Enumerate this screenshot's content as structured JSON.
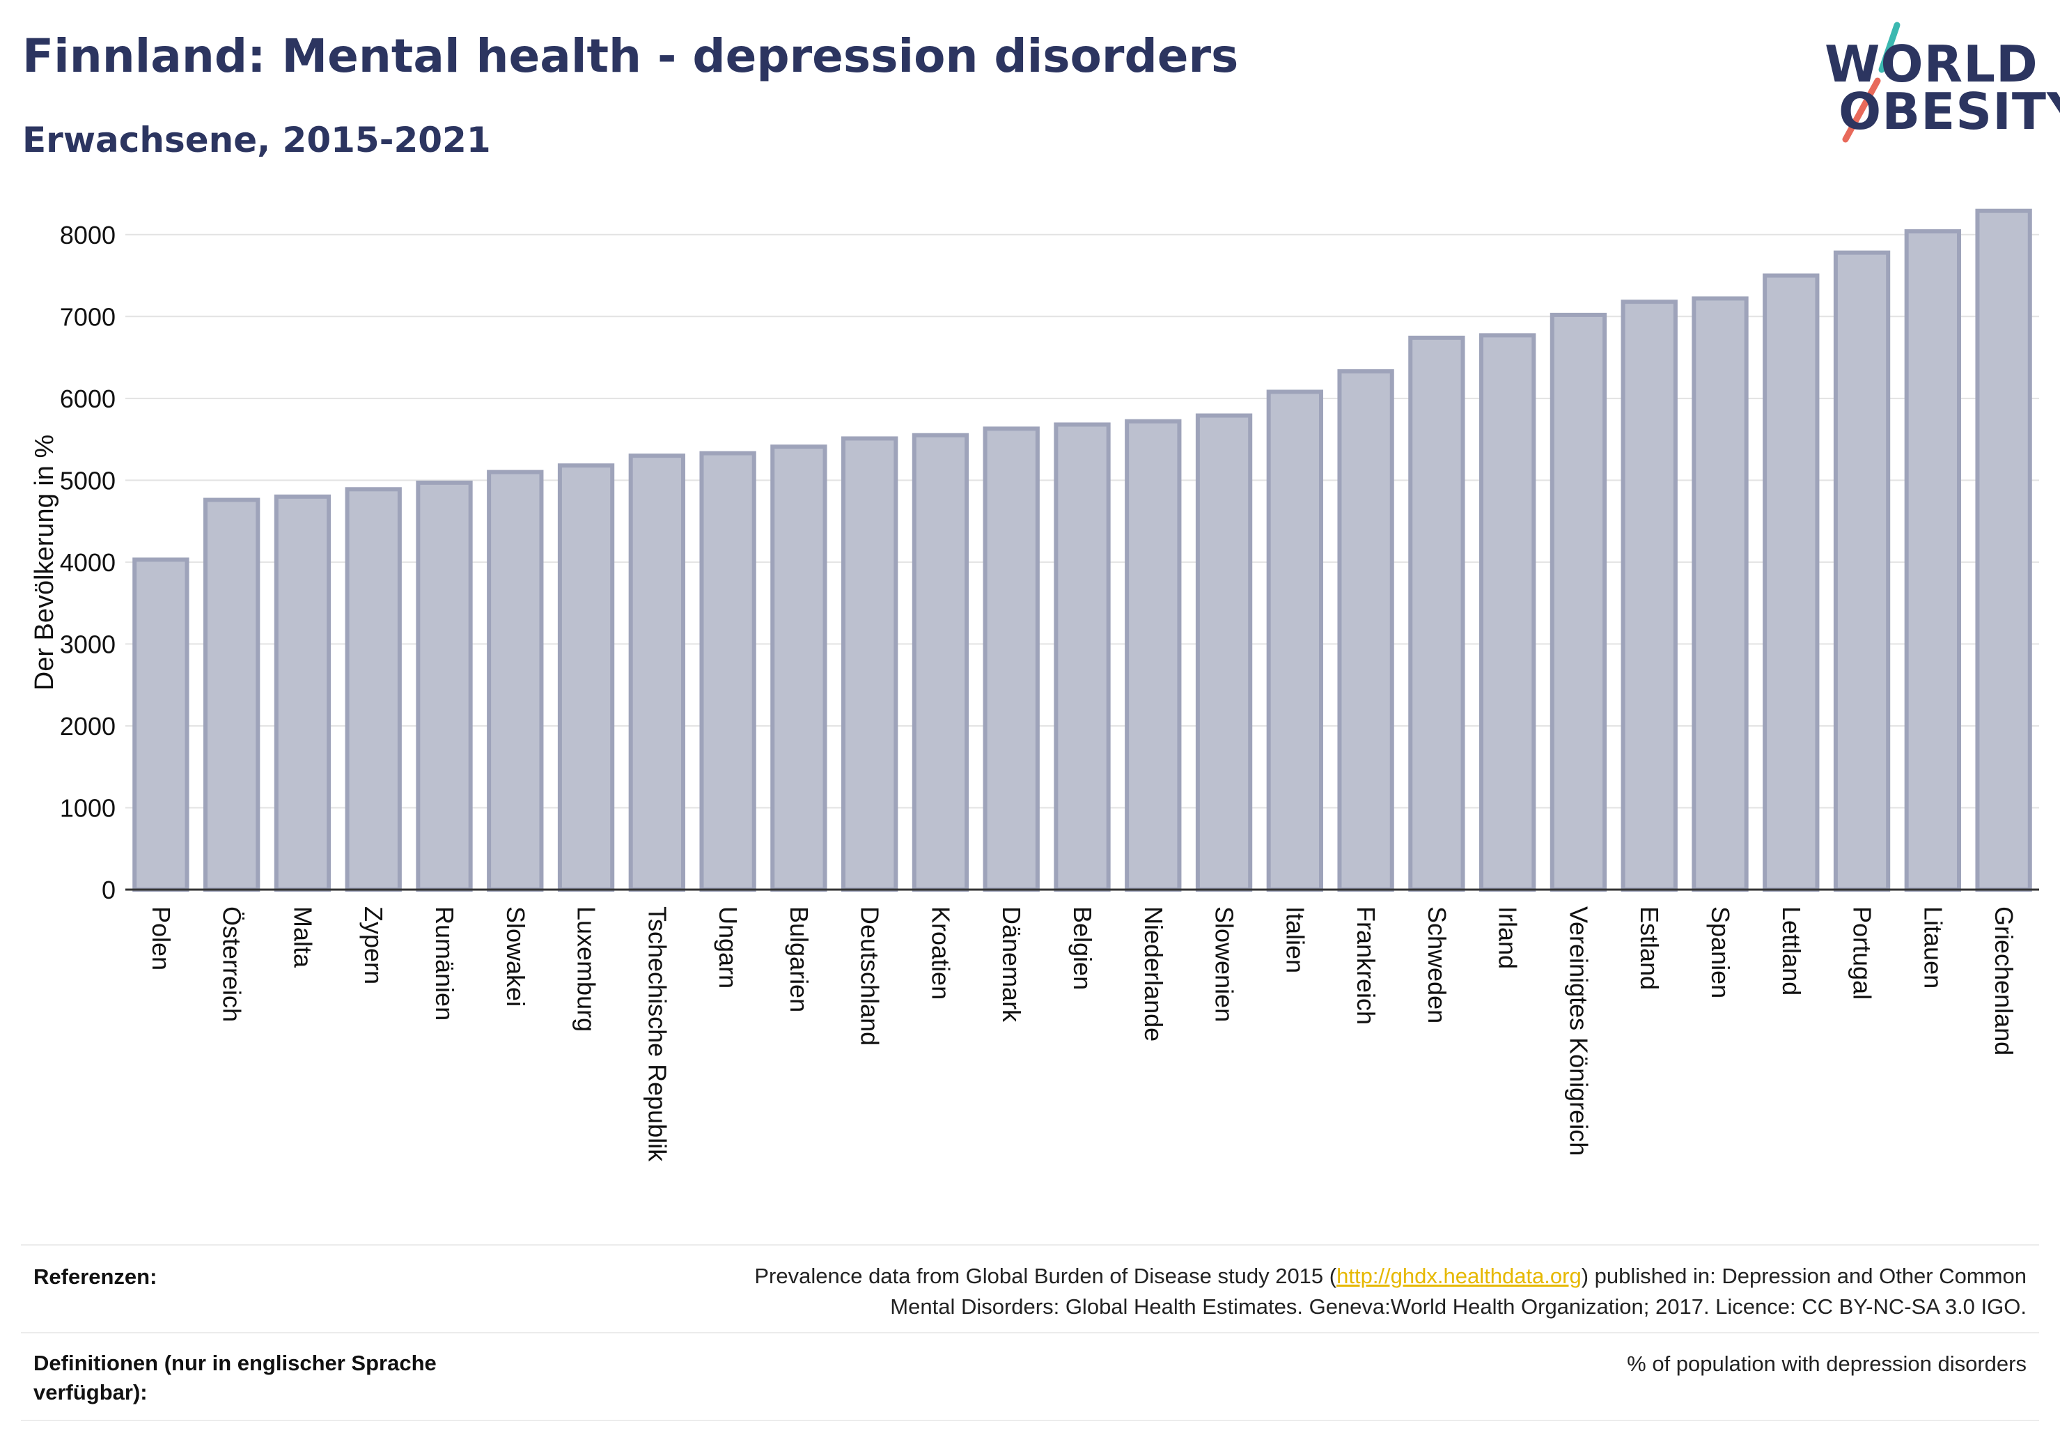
{
  "header": {
    "title": "Finnland: Mental health - depression disorders",
    "subtitle": "Erwachsene, 2015-2021"
  },
  "logo": {
    "line1": "WORLD",
    "line2": "OBESITY",
    "colors": {
      "text": "#2c3560",
      "slash_top": "#3bb8b0",
      "slash_bottom": "#e8695a"
    }
  },
  "chart_data": {
    "type": "bar",
    "title": "Finnland: Mental health - depression disorders",
    "subtitle": "Erwachsene, 2015-2021",
    "ylabel": "Der Bevölkerung in %",
    "xlabel": "",
    "ylim": [
      0,
      8500
    ],
    "yticks": [
      0,
      1000,
      2000,
      3000,
      4000,
      5000,
      6000,
      7000,
      8000
    ],
    "grid": true,
    "bar_fill": "#bcc0cf",
    "bar_stroke": "#9ea3ba",
    "categories": [
      "Polen",
      "Österreich",
      "Malta",
      "Zypern",
      "Rumänien",
      "Slowakei",
      "Luxemburg",
      "Tschechische Republik",
      "Ungarn",
      "Bulgarien",
      "Deutschland",
      "Kroatien",
      "Dänemark",
      "Belgien",
      "Niederlande",
      "Slowenien",
      "Italien",
      "Frankreich",
      "Schweden",
      "Irland",
      "Vereinigtes Königreich",
      "Estland",
      "Spanien",
      "Lettland",
      "Portugal",
      "Litauen",
      "Griechenland"
    ],
    "values": [
      4030,
      4760,
      4800,
      4890,
      4970,
      5100,
      5180,
      5300,
      5330,
      5410,
      5510,
      5550,
      5630,
      5680,
      5720,
      5790,
      6080,
      6330,
      6740,
      6770,
      7020,
      7180,
      7220,
      7500,
      7780,
      8040,
      8290
    ]
  },
  "footer": {
    "references_label": "Referenzen:",
    "references_before": "Prevalence data from Global Burden of Disease study 2015 (",
    "references_link": "http://ghdx.healthdata.org",
    "references_after": ") published in: Depression and Other Common",
    "references_line2": "Mental Disorders: Global Health Estimates. Geneva:World Health Organization; 2017. Licence: CC BY-NC-SA 3.0 IGO.",
    "definitions_label_1": "Definitionen (nur in englischer Sprache",
    "definitions_label_2": "verfügbar):",
    "definitions_text": "% of population with depression disorders"
  }
}
